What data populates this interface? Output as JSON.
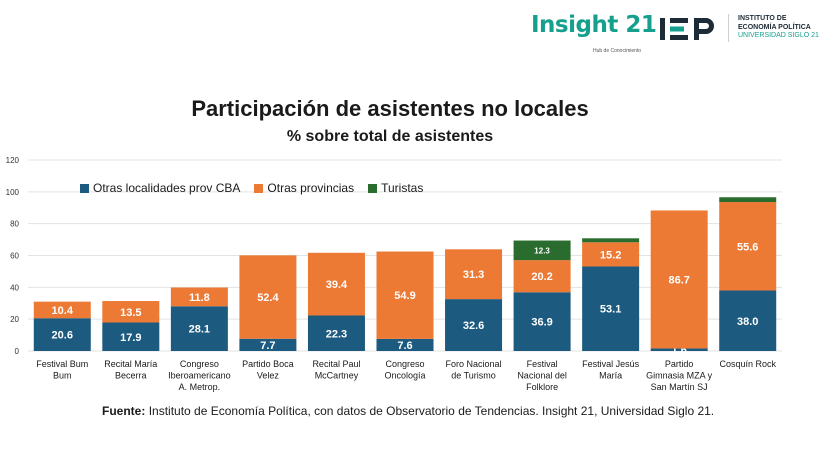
{
  "logos": {
    "insight_word": "Insight 21",
    "insight_tagline": "Hub de Conocimiento",
    "iep_mark": "IEP",
    "iep_line1": "INSTITUTO DE",
    "iep_line2": "ECONOMÍA POLÍTICA",
    "iep_line3": "UNIVERSIDAD SIGLO 21"
  },
  "source": {
    "label": "Fuente:",
    "text": "Instituto de Economía Política, con datos de Observatorio de Tendencias. Insight 21, Universidad Siglo 21."
  },
  "colors": {
    "otras_localidades": "#1c5a7f",
    "otras_provincias": "#ec7a35",
    "turistas": "#2a6b2e",
    "brand_green": "#14a08c"
  },
  "chart_data": {
    "type": "bar",
    "stacked": true,
    "title": "Participación de asistentes no locales",
    "subtitle": "% sobre total de asistentes",
    "xlabel": "",
    "ylabel": "",
    "ylim": [
      0,
      120
    ],
    "yticks": [
      0,
      20,
      40,
      60,
      80,
      100,
      120
    ],
    "grid": true,
    "legend_position": "top-left",
    "categories": [
      [
        "Festival Bum",
        "Bum"
      ],
      [
        "Recital María",
        "Becerra"
      ],
      [
        "Congreso",
        "Iberoamericano",
        "A. Metrop."
      ],
      [
        "Partido Boca",
        "Velez"
      ],
      [
        "Recital Paul",
        "McCartney"
      ],
      [
        "Congreso",
        "Oncología"
      ],
      [
        "Foro Nacional",
        "de Turismo"
      ],
      [
        "Festival",
        "Nacional del",
        "Folklore"
      ],
      [
        "Festival Jesús",
        "María"
      ],
      [
        "Partido",
        "Gimnasia MZA y",
        "San Martín SJ"
      ],
      [
        "Cosquín Rock"
      ]
    ],
    "series": [
      {
        "name": "Otras localidades prov CBA",
        "color": "#1c5a7f",
        "values": [
          20.6,
          17.9,
          28.1,
          7.7,
          22.3,
          7.6,
          32.6,
          36.9,
          53.1,
          1.6,
          38.0
        ],
        "labels": [
          "20.6",
          "17.9",
          "28.1",
          "7.7",
          "22.3",
          "7.6",
          "32.6",
          "36.9",
          "53.1",
          "1.6",
          "38.0"
        ]
      },
      {
        "name": "Otras provincias",
        "color": "#ec7a35",
        "values": [
          10.4,
          13.5,
          11.8,
          52.4,
          39.4,
          54.9,
          31.3,
          20.2,
          15.2,
          86.7,
          55.6
        ],
        "labels": [
          "10.4",
          "13.5",
          "11.8",
          "52.4",
          "39.4",
          "54.9",
          "31.3",
          "20.2",
          "15.2",
          "86.7",
          "55.6"
        ]
      },
      {
        "name": "Turistas",
        "color": "#2a6b2e",
        "values": [
          0,
          0,
          0,
          0,
          0,
          0,
          0,
          12.3,
          2.5,
          0,
          3.0
        ],
        "labels": [
          "",
          "",
          "",
          "",
          "",
          "",
          "",
          "12.3",
          "",
          "",
          ""
        ]
      }
    ]
  }
}
